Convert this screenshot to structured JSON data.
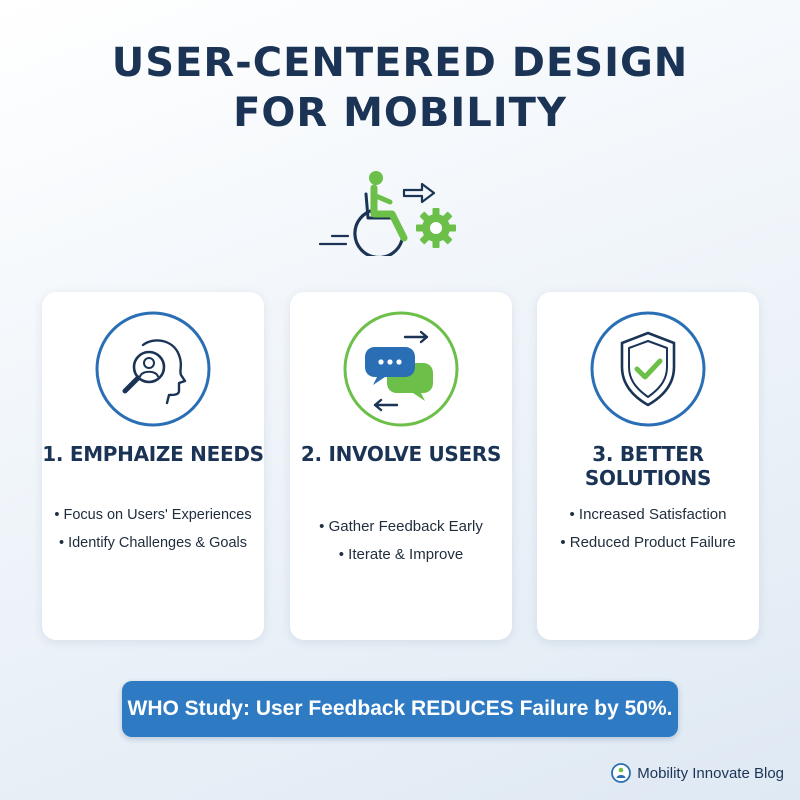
{
  "header": {
    "title_line1": "USER-CENTERED DESIGN",
    "title_line2": "FOR MOBILITY",
    "hero_icon": "wheelchair-user-with-arrow-and-gear"
  },
  "cards": [
    {
      "icon": "search-person-icon",
      "title": "1. EMPHAIZE NEEDS",
      "items": [
        "• Focus on Users' Experiences",
        "• Identify Challenges & Goals"
      ]
    },
    {
      "icon": "feedback-chat-icon",
      "title": "2. INVOLVE USERS",
      "items": [
        "• Gather Feedback Early",
        "• Iterate & Improve"
      ]
    },
    {
      "icon": "shield-check-icon",
      "title": "3. BETTER SOLUTIONS",
      "items": [
        "• Increased Satisfaction",
        "• Reduced Product Failure"
      ]
    }
  ],
  "banner": {
    "text": "WHO Study: User Feedback REDUCES Failure by 50%."
  },
  "footer": {
    "brand": "Mobility Innovate Blog",
    "logo": "blog-logo-icon"
  },
  "colors": {
    "navy": "#1b3456",
    "ring_blue": "#2a6fb5",
    "green": "#6cc04a",
    "banner_blue": "#2e7bc4"
  }
}
